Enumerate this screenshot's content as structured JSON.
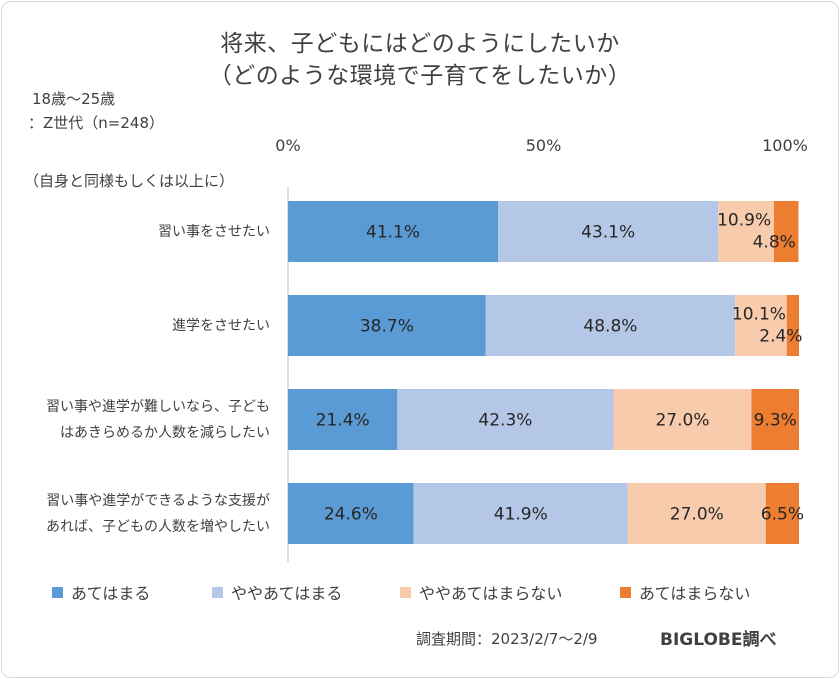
{
  "chart_data": {
    "type": "bar",
    "orientation": "horizontal",
    "stacked": true,
    "title": "将来、子どもにはどのようにしたいか",
    "subtitle": "（どのような環境で子育てをしたいか）",
    "respondents_line1": "18歳～25歳",
    "respondents_line2": "：Z世代（n=248）",
    "axis_note": "（自身と同様もしくは以上に）",
    "xlim": [
      0,
      100
    ],
    "x_ticks": [
      "0%",
      "50%",
      "100%"
    ],
    "categories": [
      [
        "習い事をさせたい"
      ],
      [
        "進学をさせたい"
      ],
      [
        "習い事や進学が難しいなら、子ども",
        "はあきらめるか人数を減らしたい"
      ],
      [
        "習い事や進学ができるような支援が",
        "あれば、子どもの人数を増やしたい"
      ]
    ],
    "series": [
      {
        "name": "あてはまる",
        "color": "#5b9bd5",
        "values": [
          41.1,
          38.7,
          21.4,
          24.6
        ]
      },
      {
        "name": "ややあてはまる",
        "color": "#b4c7e7",
        "values": [
          43.1,
          48.8,
          42.3,
          41.9
        ]
      },
      {
        "name": "ややあてはまらない",
        "color": "#f8cbad",
        "values": [
          10.9,
          10.1,
          27.0,
          27.0
        ]
      },
      {
        "name": "あてはまらない",
        "color": "#ed7d31",
        "values": [
          4.8,
          2.4,
          9.3,
          6.5
        ]
      }
    ],
    "legend_position": "bottom"
  },
  "footer": {
    "period": "調査期間：2023/2/7～2/9",
    "brand": "BIGLOBE調べ"
  }
}
